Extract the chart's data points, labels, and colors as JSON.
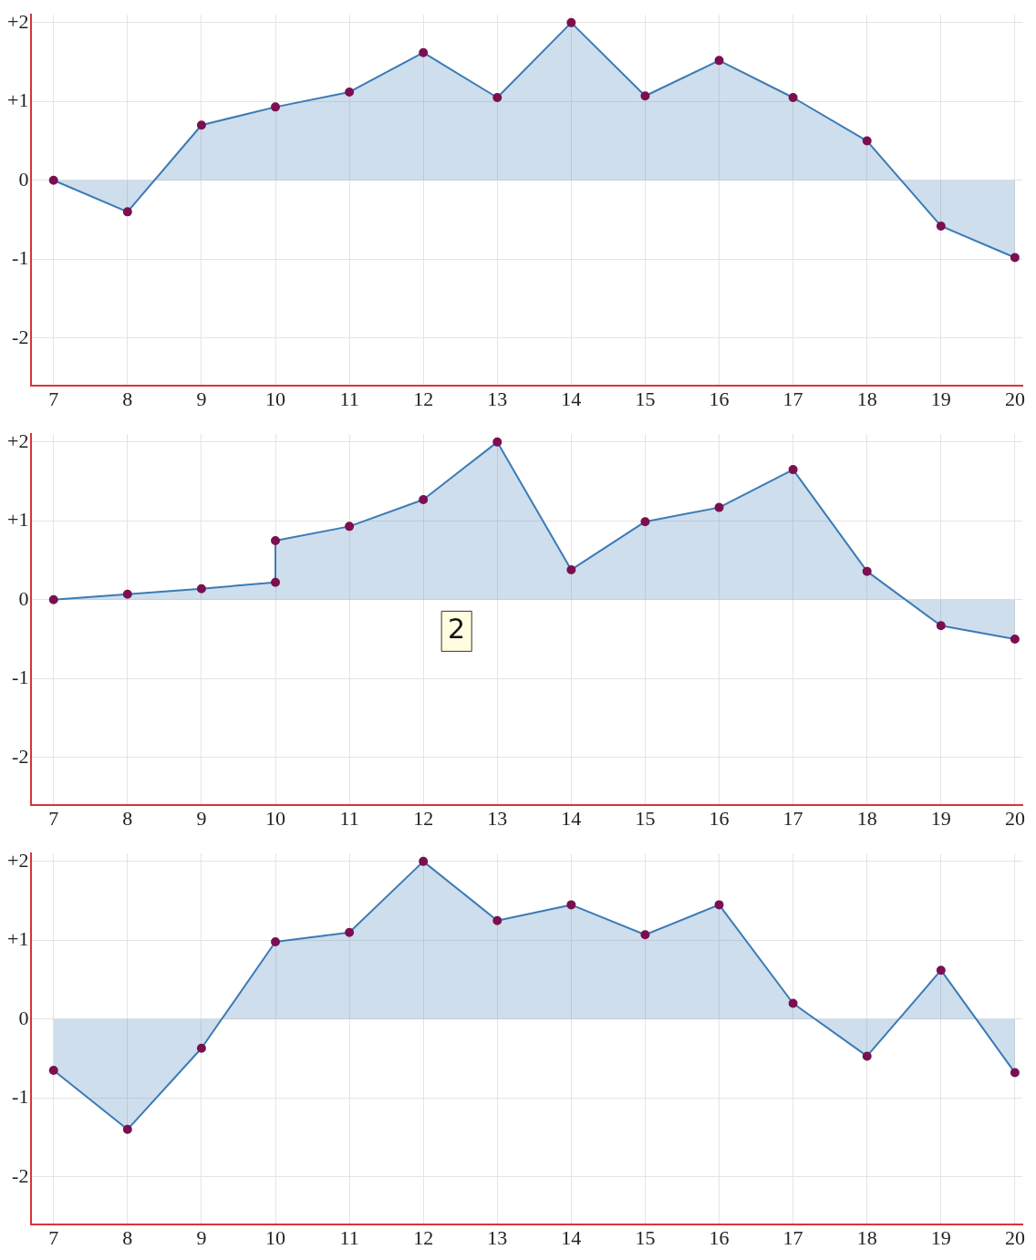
{
  "chart_data": [
    {
      "type": "area",
      "x": [
        7,
        8,
        9,
        10,
        11,
        12,
        13,
        14,
        15,
        16,
        17,
        18,
        19,
        20
      ],
      "series": [
        {
          "color": "#3b7bb5",
          "values": [
            0,
            -0.4,
            0.7,
            0.93,
            1.12,
            1.62,
            1.05,
            2.0,
            1.07,
            1.52,
            1.05,
            0.5,
            -0.58,
            -0.98
          ]
        }
      ],
      "xlim": [
        6.7,
        20.1
      ],
      "xticks": [
        7,
        8,
        9,
        10,
        11,
        12,
        13,
        14,
        15,
        16,
        17,
        18,
        19,
        20
      ],
      "ylim": [
        -2.6,
        2.1
      ],
      "yticks": [
        {
          "value": -2,
          "label": "-2"
        },
        {
          "value": -1,
          "label": "-1"
        },
        {
          "value": 0,
          "label": "0"
        },
        {
          "value": 1,
          "label": "+1"
        },
        {
          "value": 2,
          "label": "+2"
        }
      ],
      "grid": true,
      "marker": "circle",
      "legend": false
    },
    {
      "type": "area",
      "x": [
        7,
        8,
        9,
        10,
        10,
        11,
        12,
        13,
        14,
        15,
        16,
        17,
        18,
        19,
        20
      ],
      "series": [
        {
          "color": "#3b7bb5",
          "values": [
            0,
            0.07,
            0.14,
            0.22,
            0.75,
            0.93,
            1.27,
            2.0,
            0.38,
            0.99,
            1.17,
            1.65,
            0.36,
            -0.33,
            -0.5
          ]
        }
      ],
      "xlim": [
        6.7,
        20.1
      ],
      "xticks": [
        7,
        8,
        9,
        10,
        11,
        12,
        13,
        14,
        15,
        16,
        17,
        18,
        19,
        20
      ],
      "ylim": [
        -2.6,
        2.1
      ],
      "yticks": [
        {
          "value": -2,
          "label": "-2"
        },
        {
          "value": -1,
          "label": "-1"
        },
        {
          "value": 0,
          "label": "0"
        },
        {
          "value": 1,
          "label": "+1"
        },
        {
          "value": 2,
          "label": "+2"
        }
      ],
      "grid": true,
      "marker": "circle",
      "legend": false,
      "annotations": [
        {
          "text": "2",
          "x": 12.45,
          "y": -0.4
        }
      ]
    },
    {
      "type": "area",
      "x": [
        7,
        8,
        9,
        10,
        11,
        12,
        13,
        14,
        15,
        16,
        17,
        18,
        19,
        20
      ],
      "series": [
        {
          "color": "#3b7bb5",
          "values": [
            -0.65,
            -1.4,
            -0.37,
            0.98,
            1.1,
            2.0,
            1.25,
            1.45,
            1.07,
            1.45,
            0.2,
            -0.47,
            0.62,
            -0.68
          ]
        }
      ],
      "xlim": [
        6.7,
        20.1
      ],
      "xticks": [
        7,
        8,
        9,
        10,
        11,
        12,
        13,
        14,
        15,
        16,
        17,
        18,
        19,
        20
      ],
      "ylim": [
        -2.6,
        2.1
      ],
      "yticks": [
        {
          "value": -2,
          "label": "-2"
        },
        {
          "value": -1,
          "label": "-1"
        },
        {
          "value": 0,
          "label": "0"
        },
        {
          "value": 1,
          "label": "+1"
        },
        {
          "value": 2,
          "label": "+2"
        }
      ],
      "grid": true,
      "marker": "circle",
      "legend": false
    }
  ]
}
